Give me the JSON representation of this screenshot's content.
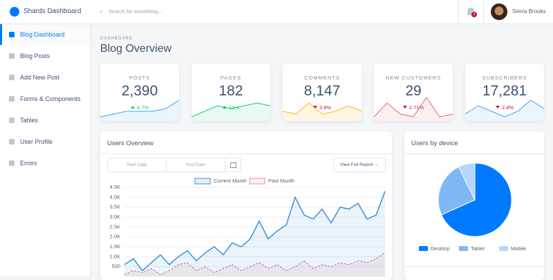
{
  "header": {
    "brand": "Shards Dashboard",
    "search_placeholder": "Search for something...",
    "notification_count": "2",
    "user": "Sierra Brooks"
  },
  "sidebar": {
    "items": [
      "Blog Dashboard",
      "Blog Posts",
      "Add New Post",
      "Forms & Components",
      "Tables",
      "User Profile",
      "Errors"
    ],
    "active": 0
  },
  "page": {
    "subtitle": "DASHBOARD",
    "title": "Blog Overview"
  },
  "stats": [
    {
      "label": "POSTS",
      "value": "2,390",
      "change": "4.7%",
      "trend": "up",
      "color": "#3a9df9",
      "spark": [
        1,
        2,
        3,
        3,
        3,
        4,
        7
      ]
    },
    {
      "label": "PAGES",
      "value": "182",
      "change": "12.4",
      "trend": "up",
      "color": "#17c671",
      "spark": [
        1,
        3,
        5,
        4,
        5,
        6,
        5
      ]
    },
    {
      "label": "COMMENTS",
      "value": "8,147",
      "change": "3.8%",
      "trend": "down",
      "color": "#ffb400",
      "spark": [
        3,
        2,
        6,
        2,
        3,
        5,
        3
      ]
    },
    {
      "label": "NEW CUSTOMERS",
      "value": "29",
      "change": "2.71%",
      "trend": "down",
      "color": "#e4606d",
      "spark": [
        1,
        6,
        2,
        1,
        8,
        1,
        2
      ]
    },
    {
      "label": "SUBSCRIBERS",
      "value": "17,281",
      "change": "2.4%",
      "trend": "down",
      "color": "#3a9df9",
      "spark": [
        2,
        5,
        3,
        1,
        3,
        7,
        4
      ]
    }
  ],
  "overview_controls": {
    "start": "Start Date",
    "end": "End Date",
    "button": "View Full Report →"
  },
  "chart_data": [
    {
      "type": "line",
      "title": "Users Overview",
      "series": [
        {
          "name": "Current Month",
          "color": "#3a8fd9",
          "values": [
            600,
            900,
            300,
            700,
            1100,
            600,
            1000,
            1300,
            800,
            1200,
            1500,
            1100,
            1700,
            1500,
            1900,
            2800,
            1900,
            2300,
            2600,
            4000,
            3100,
            2900,
            3400,
            2700,
            3500,
            3400,
            3700,
            2900,
            3100,
            4300
          ]
        },
        {
          "name": "Past Month",
          "color": "#e4606d",
          "values": [
            100,
            300,
            200,
            400,
            100,
            300,
            600,
            700,
            300,
            500,
            200,
            400,
            600,
            300,
            500,
            700,
            400,
            600,
            300,
            500,
            800,
            400,
            600,
            500,
            700,
            600,
            800,
            700,
            900,
            1200
          ]
        }
      ],
      "ylim": [
        0,
        4500
      ],
      "yticks": [
        500,
        {
          "value": 1000,
          "label": "1.0K"
        },
        {
          "value": 1500,
          "label": "1.5K"
        },
        {
          "value": 2000,
          "label": "2.0K"
        },
        {
          "value": 2500,
          "label": "2.5K"
        },
        {
          "value": 3000,
          "label": "3.0K"
        },
        {
          "value": 3500,
          "label": "3.5K"
        },
        {
          "value": 4000,
          "label": "4.0K"
        },
        {
          "value": 4500,
          "label": "4.5K"
        }
      ],
      "grid": true
    },
    {
      "type": "pie",
      "title": "Users by device",
      "categories": [
        "Desktop",
        "Tablet",
        "Mobile"
      ],
      "values": [
        68.3,
        24.4,
        7.3
      ],
      "colors": [
        "#007bff",
        "#7fb8f5",
        "#b3d7ff"
      ]
    }
  ]
}
